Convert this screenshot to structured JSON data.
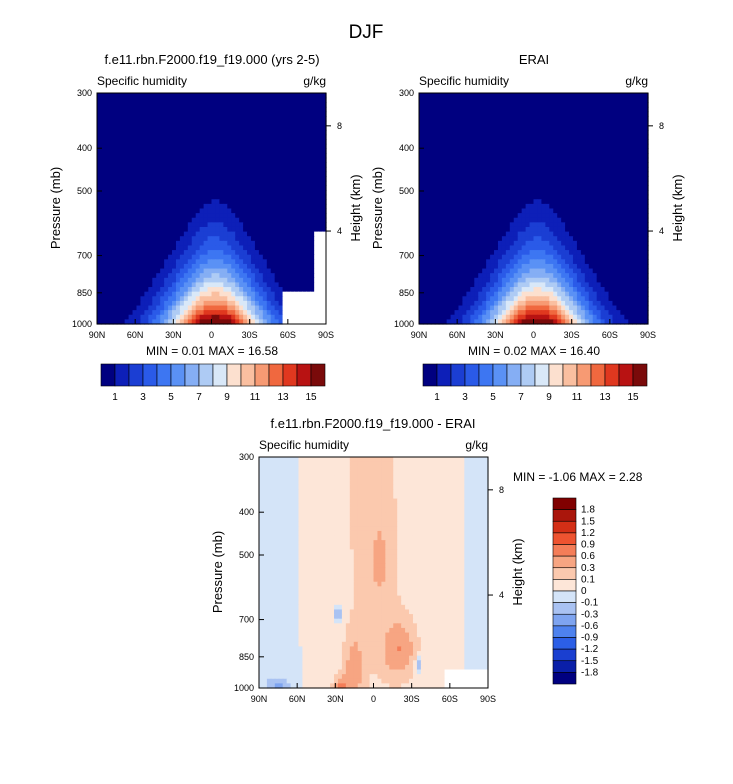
{
  "figure_title": "DJF",
  "chart_data": [
    {
      "type": "heatmap",
      "id": "panel-model",
      "title": "f.e11.rbn.F2000.f19_f19.000 (yrs 2-5)",
      "left_label": "Specific humidity",
      "units": "g/kg",
      "xlabel": "",
      "ylabel": "Pressure (mb)",
      "ylabel_right": "Height (km)",
      "x_ticks": [
        "90N",
        "60N",
        "30N",
        "0",
        "30S",
        "60S",
        "90S"
      ],
      "y_ticks": [
        "300",
        "400",
        "500",
        "700",
        "850",
        "1000"
      ],
      "height_ticks": [
        "8",
        "4"
      ],
      "stats": "MIN =  0.01  MAX =  16.58",
      "field": {
        "peak": 16.58,
        "peak_lat": -3,
        "base_halfwidth_lat": 52,
        "top_halfwidth_lat": 8,
        "top_pressure": 380,
        "missing_boxes": [
          [
            55,
            90,
            850,
            1000
          ],
          [
            80,
            90,
            620,
            850
          ]
        ]
      }
    },
    {
      "type": "heatmap",
      "id": "panel-obs",
      "title": "ERAI",
      "left_label": "Specific humidity",
      "units": "g/kg",
      "xlabel": "",
      "ylabel": "Pressure (mb)",
      "ylabel_right": "Height (km)",
      "x_ticks": [
        "90N",
        "60N",
        "30N",
        "0",
        "30S",
        "60S",
        "90S"
      ],
      "y_ticks": [
        "300",
        "400",
        "500",
        "700",
        "850",
        "1000"
      ],
      "height_ticks": [
        "8",
        "4"
      ],
      "stats": "MIN =  0.02  MAX =  16.40",
      "field": {
        "peak": 16.4,
        "peak_lat": -3,
        "base_halfwidth_lat": 52,
        "top_halfwidth_lat": 8,
        "top_pressure": 380,
        "missing_boxes": []
      }
    },
    {
      "type": "heatmap",
      "id": "panel-diff",
      "title": "f.e11.rbn.F2000.f19_f19.000 - ERAI",
      "left_label": "Specific humidity",
      "units": "g/kg",
      "xlabel": "",
      "ylabel": "Pressure (mb)",
      "ylabel_right": "Height (km)",
      "x_ticks": [
        "90N",
        "60N",
        "30N",
        "0",
        "30S",
        "60S",
        "90S"
      ],
      "y_ticks": [
        "300",
        "400",
        "500",
        "700",
        "850",
        "1000"
      ],
      "height_ticks": [
        "8",
        "4"
      ],
      "stats": "MIN = -1.06  MAX =   2.28",
      "field": {
        "min": -1.06,
        "max": 2.28,
        "missing_boxes": [
          [
            55,
            90,
            900,
            1000
          ]
        ]
      }
    }
  ],
  "colorbars": {
    "abs": {
      "labels": [
        "1",
        "3",
        "5",
        "7",
        "9",
        "11",
        "13",
        "15"
      ],
      "levels": [
        1,
        2,
        3,
        4,
        5,
        6,
        7,
        8,
        9,
        10,
        11,
        12,
        13,
        14,
        15
      ],
      "colors": [
        "#000080",
        "#0d1fb8",
        "#1b3ed3",
        "#2a5ae8",
        "#3d76f2",
        "#5a91f5",
        "#85aef4",
        "#aecbf4",
        "#d9e8f8",
        "#fce0cf",
        "#fabfa0",
        "#f79a73",
        "#f0683f",
        "#e0381f",
        "#b81212",
        "#7a0a0a"
      ]
    },
    "diff": {
      "labels": [
        "1.8",
        "1.5",
        "1.2",
        "0.9",
        "0.6",
        "0.3",
        "0.1",
        "0",
        "-0.1",
        "-0.3",
        "-0.6",
        "-0.9",
        "-1.2",
        "-1.5",
        "-1.8"
      ],
      "levels": [
        -1.8,
        -1.5,
        -1.2,
        -0.9,
        -0.6,
        -0.3,
        -0.1,
        0,
        0.1,
        0.3,
        0.6,
        0.9,
        1.2,
        1.5,
        1.8
      ],
      "colors": [
        "#000080",
        "#0a1fa8",
        "#1a3fd0",
        "#2c5fe6",
        "#4e82ee",
        "#7ea4f0",
        "#a9c2f2",
        "#d4e4f8",
        "#fde6d8",
        "#fbc9ae",
        "#f7a582",
        "#f47d58",
        "#ee5330",
        "#d42f16",
        "#aa160c",
        "#800000"
      ]
    }
  }
}
